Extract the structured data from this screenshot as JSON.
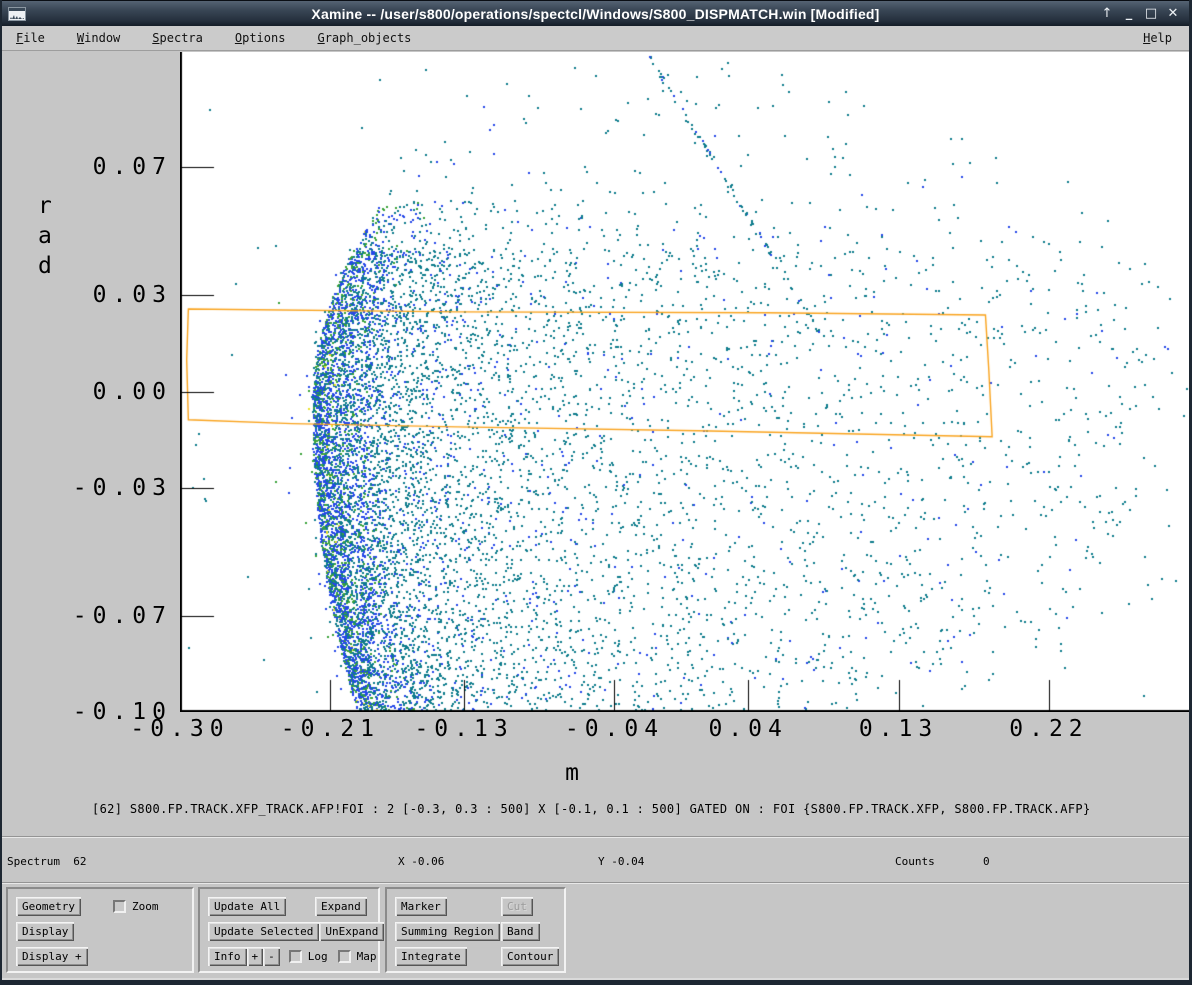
{
  "window": {
    "title": "Xamine -- /user/s800/operations/spectcl/Windows/S800_DISPMATCH.win [Modified]",
    "controls": {
      "shade": "↑",
      "minimize": "_",
      "maximize": "□",
      "close": "✕"
    }
  },
  "menubar": {
    "items": [
      {
        "mnemonic": "F",
        "rest": "ile"
      },
      {
        "mnemonic": "W",
        "rest": "indow"
      },
      {
        "mnemonic": "S",
        "rest": "pectra"
      },
      {
        "mnemonic": "O",
        "rest": "ptions"
      },
      {
        "mnemonic": "G",
        "rest": "raph_objects"
      }
    ],
    "help": {
      "mnemonic": "H",
      "rest": "elp"
    }
  },
  "statusbar": {
    "spectrum_label": "Spectrum  62",
    "x_label": "X -0.06",
    "y_label": "Y -0.04",
    "counts_label": "Counts",
    "counts_value": "0"
  },
  "panel": {
    "geometry_group": {
      "geometry": "Geometry",
      "zoom": "Zoom",
      "display": "Display",
      "display_plus": "Display +"
    },
    "update_group": {
      "update_all": "Update All",
      "expand": "Expand",
      "update_selected": "Update Selected",
      "unexpand": "UnExpand",
      "info": "Info",
      "plus": "+",
      "minus": "-",
      "log": "Log",
      "map": "Map"
    },
    "graph_group": {
      "marker": "Marker",
      "cut": "Cut",
      "cut_disabled": true,
      "summing_region": "Summing Region",
      "band": "Band",
      "integrate": "Integrate",
      "contour": "Contour"
    },
    "checkboxes": {
      "zoom_checked": false,
      "log_checked": false,
      "map_checked": false
    }
  },
  "chart_data": {
    "type": "scatter",
    "title": "[62] S800.FP.TRACK.XFP_TRACK.AFP!FOI : 2 [-0.3, 0.3 : 500] X [-0.1, 0.1 : 500] GATED ON : FOI {S800.FP.TRACK.XFP, S800.FP.TRACK.AFP}",
    "xlabel": "m",
    "ylabel": "rad",
    "xlim": [
      -0.3,
      0.305
    ],
    "ylim": [
      -0.1,
      0.106
    ],
    "grid": false,
    "x_ticks": [
      {
        "value": -0.3,
        "label": "-0.30"
      },
      {
        "value": -0.21,
        "label": "-0.21"
      },
      {
        "value": -0.13,
        "label": "-0.13"
      },
      {
        "value": -0.04,
        "label": "-0.04"
      },
      {
        "value": 0.04,
        "label": "0.04"
      },
      {
        "value": 0.13,
        "label": "0.13"
      },
      {
        "value": 0.22,
        "label": "0.22"
      }
    ],
    "y_ticks": [
      {
        "value": 0.07,
        "label": "0.07"
      },
      {
        "value": 0.03,
        "label": "0.03"
      },
      {
        "value": 0.0,
        "label": "0.00"
      },
      {
        "value": -0.03,
        "label": "-0.03"
      },
      {
        "value": -0.07,
        "label": "-0.07"
      },
      {
        "value": -0.1,
        "label": "-0.10"
      }
    ],
    "palette": {
      "teal": "#0e7c8c",
      "blue": "#2547e8",
      "green": "#3aa23a",
      "yellow": "#e8e02a"
    },
    "seed": 987654321,
    "cloud": {
      "n": 9500,
      "rim_x": -0.221,
      "vertex_y": -0.005,
      "curve_top": 10,
      "curve_bottom": 3
    },
    "field": {
      "n": 2300
    },
    "streak": {
      "n": 120,
      "x0": -0.02,
      "y0": 0.105,
      "x1": 0.082,
      "y1": 0.019
    },
    "envelope": {
      "cx": -0.22,
      "cy": -0.01,
      "rx": 0.55,
      "ry": 0.125
    },
    "gate": {
      "name": "FOI",
      "color": "#f9a21b",
      "points": [
        [
          -0.295,
          0.0258
        ],
        [
          -0.134,
          0.0249
        ],
        [
          0.051,
          0.0246
        ],
        [
          0.182,
          0.0239
        ],
        [
          0.184,
          0.0068
        ],
        [
          0.186,
          -0.0141
        ],
        [
          0.01,
          -0.0122
        ],
        [
          -0.134,
          -0.011
        ],
        [
          -0.233,
          -0.01
        ],
        [
          -0.295,
          -0.0088
        ],
        [
          -0.296,
          0.0099
        ]
      ]
    }
  }
}
